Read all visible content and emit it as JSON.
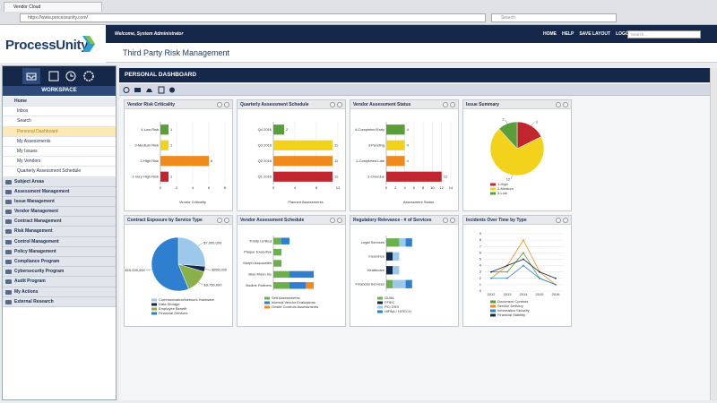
{
  "browser": {
    "tab": "Vendor Cloud",
    "url": "https://www.processunity.com/",
    "search": "Search"
  },
  "header": {
    "logo": "ProcessUnity",
    "welcome": "Welcome, System Administrator",
    "nav": [
      "HOME",
      "HELP",
      "SAVE LAYOUT",
      "LOGOUT"
    ],
    "search": "Search...",
    "app_title": "Third Party Risk Management"
  },
  "sidebar": {
    "workspace": "WORKSPACE",
    "home": "Home",
    "links": [
      "Inbox",
      "Search",
      "Personal Dashboard",
      "My Assessments",
      "My Issues",
      "My Vendors",
      "Quarterly Assessment Schedule"
    ],
    "active": 2,
    "sections": [
      "Subject Areas",
      "Assessment Management",
      "Issue Management",
      "Vendor Management",
      "Contract Management",
      "Risk Management",
      "Control Management",
      "Policy Management",
      "Compliance Program",
      "Cybersecurity Program",
      "Audit Program",
      "My Actions",
      "External Research"
    ]
  },
  "dashboard": {
    "title": "PERSONAL DASHBOARD",
    "widgets": [
      {
        "title": "Vendor Risk Criticality",
        "type": "hbar",
        "categories": [
          "4-Low Risk",
          "3-Medium Risk",
          "2-High Risk",
          "1-Very High Risk"
        ],
        "values": [
          1,
          1,
          6,
          1
        ],
        "colors": [
          "#5a9e3a",
          "#f2d21b",
          "#f08a1c",
          "#c1262e"
        ],
        "xlim": [
          0,
          8
        ],
        "xticks": [
          0,
          2,
          4,
          6,
          8
        ],
        "xlabel": "Vendor Criticality"
      },
      {
        "title": "Quarterly Assessment Schedule",
        "type": "hbar",
        "categories": [
          "Q4 2016",
          "Q3 2016",
          "Q2 2016",
          "Q1 2016"
        ],
        "values": [
          2,
          11,
          11,
          11
        ],
        "colors": [
          "#5a9e3a",
          "#f2d21b",
          "#f08a1c",
          "#c1262e"
        ],
        "xlim": [
          0,
          12
        ],
        "xticks": [
          0,
          4,
          8,
          12
        ],
        "xlabel": "Planned Assessments"
      },
      {
        "title": "Vendor Assessment Status",
        "type": "hbar",
        "categories": [
          "4-Completed Early",
          "3-Pending",
          "2-Completed Late",
          "1-Overdue"
        ],
        "values": [
          4,
          4,
          4,
          12
        ],
        "colors": [
          "#5a9e3a",
          "#f2d21b",
          "#f08a1c",
          "#c1262e"
        ],
        "xlim": [
          0,
          14
        ],
        "xticks": [
          0,
          2,
          4,
          6,
          8,
          10,
          12,
          14
        ],
        "xlabel": "Assessment Status"
      },
      {
        "title": "Issue Summary",
        "type": "pie",
        "labels": [
          "1-High",
          "2-Medium",
          "3-Low"
        ],
        "values": [
          3,
          12,
          2
        ],
        "colors": [
          "#c1262e",
          "#f2d21b",
          "#5a9e3a"
        ]
      },
      {
        "title": "Contract Exposure by Service Type",
        "type": "pie",
        "labels": [
          "Communication/Network Hardware",
          "Data Storage",
          "Employee Benefit",
          "Financial Services"
        ],
        "values": [
          7000000,
          900000,
          3750000,
          15000000
        ],
        "value_labels": [
          "$7,000,000",
          "$900,000",
          "$3,750,000",
          "$15,000,000"
        ],
        "colors": [
          "#9cc8ea",
          "#13294b",
          "#8ab04a",
          "#2f7fd1"
        ]
      },
      {
        "title": "Vendor Assessment Schedule",
        "type": "stacked-hbar",
        "categories": [
          "Trinity Limited",
          "Plaque Executive",
          "Murph Associates",
          "Blue Moon Inc",
          "Bodine Partners"
        ],
        "xlim": [
          0,
          8
        ],
        "series": [
          {
            "name": "Self Assessments",
            "color": "#6ab04c",
            "values": [
              1,
              1,
              1,
              2,
              2
            ]
          },
          {
            "name": "Internal Vendor Evaluations",
            "color": "#2f7fd1",
            "values": [
              1,
              0,
              0,
              3,
              2
            ]
          },
          {
            "name": "Onsite Controls Assessments",
            "color": "#f08a1c",
            "values": [
              0,
              0,
              0,
              0,
              1
            ]
          }
        ]
      },
      {
        "title": "Regulatory Relevance - # of Services",
        "type": "stacked-hbar",
        "categories": [
          "Legal Services",
          "Insurance",
          "Healthcare",
          "Financial Services"
        ],
        "xlim": [
          0,
          10
        ],
        "series": [
          {
            "name": "GLBA",
            "color": "#6ab04c",
            "values": [
              2,
              0,
              0,
              1
            ]
          },
          {
            "name": "FFIEC",
            "color": "#13294b",
            "values": [
              0,
              1,
              1,
              0
            ]
          },
          {
            "name": "PCI DSS",
            "color": "#9cc8ea",
            "values": [
              1,
              1,
              1,
              2
            ]
          },
          {
            "name": "HIPAA / HITECH",
            "color": "#2f7fd1",
            "values": [
              1,
              0,
              0,
              1
            ]
          }
        ]
      },
      {
        "title": "Incidents Over Time by Type",
        "type": "line",
        "categories": [
          "2012",
          "2013",
          "2014",
          "2015",
          "2016"
        ],
        "ylim": [
          0,
          9
        ],
        "yticks": [
          0,
          1,
          2,
          3,
          4,
          5,
          6,
          7,
          8,
          9
        ],
        "series": [
          {
            "name": "Document Controls",
            "color": "#5a9e3a",
            "values": [
              3,
              3,
              6,
              2,
              1
            ]
          },
          {
            "name": "Service Delivery",
            "color": "#f08a1c",
            "values": [
              2,
              4,
              8,
              3,
              1
            ]
          },
          {
            "name": "Information Security",
            "color": "#2f7fd1",
            "values": [
              2,
              2,
              4,
              2,
              1
            ]
          },
          {
            "name": "Financial Stability",
            "color": "#13294b",
            "values": [
              3,
              4,
              5,
              3,
              2
            ]
          }
        ]
      }
    ]
  }
}
